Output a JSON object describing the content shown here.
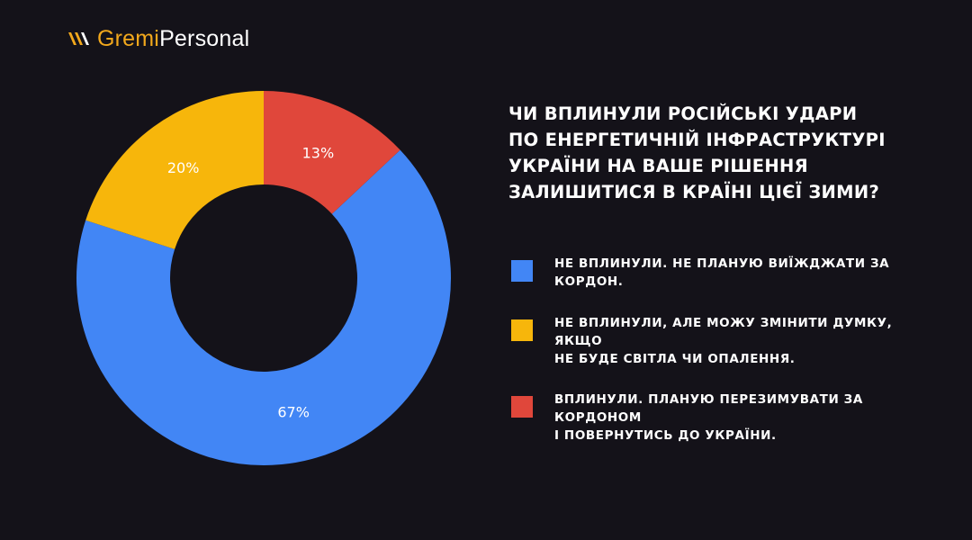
{
  "brand": {
    "name_part1": "Gremi",
    "name_part2": "Personal",
    "color": "#f2a81c"
  },
  "colors": {
    "background": "#141219"
  },
  "chart_data": {
    "type": "pie",
    "donut": true,
    "title": "ЧИ ВПЛИНУЛИ РОСІЙСЬКІ УДАРИ ПО ЕНЕРГЕТИЧНІЙ ІНФРАСТРУКТУРІ УКРАЇНИ НА ВАШЕ РІШЕННЯ ЗАЛИШИТИСЯ В КРАЇНІ ЦІЄЇ ЗИМИ?",
    "title_lines": [
      "ЧИ ВПЛИНУЛИ РОСІЙСЬКІ УДАРИ",
      "ПО ЕНЕРГЕТИЧНІЙ ІНФРАСТРУКТУРІ",
      "УКРАЇНИ НА ВАШЕ РІШЕННЯ",
      "ЗАЛИШИТИСЯ В КРАЇНІ ЦІЄЇ ЗИМИ?"
    ],
    "legend_position": "right",
    "slices": [
      {
        "label": "НЕ ВПЛИНУЛИ. НЕ ПЛАНУЮ ВИЇЖДЖАТИ ЗА КОРДОН.",
        "lines": [
          "НЕ ВПЛИНУЛИ. НЕ ПЛАНУЮ ВИЇЖДЖАТИ ЗА",
          "КОРДОН."
        ],
        "value": 67,
        "display": "67%",
        "color": "#4286f5"
      },
      {
        "label": "НЕ ВПЛИНУЛИ, АЛЕ МОЖУ ЗМІНИТИ ДУМКУ, ЯКЩО НЕ БУДЕ СВІТЛА ЧИ ОПАЛЕННЯ.",
        "lines": [
          "НЕ ВПЛИНУЛИ, АЛЕ МОЖУ ЗМІНИТИ ДУМКУ, ЯКЩО",
          "НЕ БУДЕ СВІТЛА ЧИ ОПАЛЕННЯ."
        ],
        "value": 20,
        "display": "20%",
        "color": "#f7b60b"
      },
      {
        "label": "ВПЛИНУЛИ. ПЛАНУЮ ПЕРЕЗИМУВАТИ ЗА КОРДОНОМ І ПОВЕРНУТИСЬ ДО УКРАЇНИ.",
        "lines": [
          "ВПЛИНУЛИ. ПЛАНУЮ ПЕРЕЗИМУВАТИ ЗА КОРДОНОМ",
          "І ПОВЕРНУТИСЬ ДО УКРАЇНИ."
        ],
        "value": 13,
        "display": "13%",
        "color": "#e0473b"
      }
    ]
  }
}
